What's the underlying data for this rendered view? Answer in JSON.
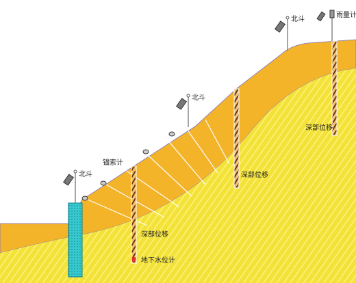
{
  "labels": {
    "beidou": [
      "北斗",
      "北斗",
      "北斗"
    ],
    "rain_gauge": "雨量计",
    "anchor_meter": "锚索计",
    "deep_displacement": [
      "深部位移",
      "深部位移",
      "深部位移"
    ],
    "groundwater_meter": "地下水位计"
  }
}
